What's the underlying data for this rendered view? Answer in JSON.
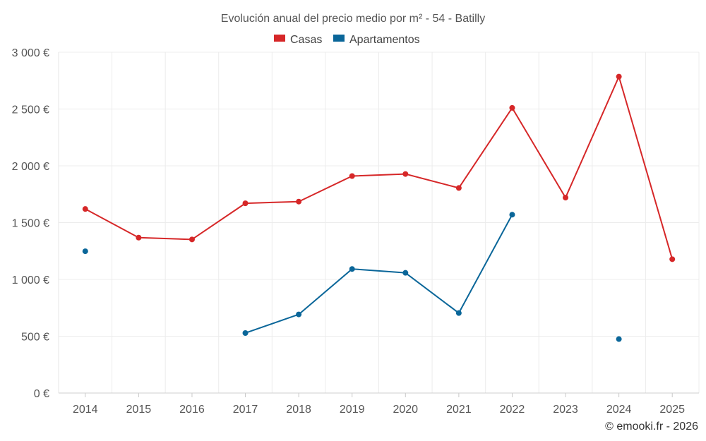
{
  "chart_data": {
    "type": "line",
    "title": "Evolución anual del precio medio por m² - 54 - Batilly",
    "categories": [
      "2014",
      "2015",
      "2016",
      "2017",
      "2018",
      "2019",
      "2020",
      "2021",
      "2022",
      "2023",
      "2024",
      "2025"
    ],
    "series": [
      {
        "name": "Casas",
        "color": "#d62728",
        "values": [
          1620,
          1368,
          1352,
          1670,
          1685,
          1910,
          1928,
          1805,
          2510,
          1720,
          2785,
          1178
        ]
      },
      {
        "name": "Apartamentos",
        "color": "#0a6699",
        "values": [
          1248,
          null,
          null,
          528,
          692,
          1092,
          1058,
          704,
          1570,
          null,
          475,
          null
        ]
      }
    ],
    "ylim": [
      0,
      3000
    ],
    "yticks": [
      0,
      500,
      1000,
      1500,
      2000,
      2500,
      3000
    ],
    "ytick_labels": [
      "0 €",
      "500 €",
      "1 000 €",
      "1 500 €",
      "2 000 €",
      "2 500 €",
      "3 000 €"
    ],
    "xlabel": "",
    "ylabel": "",
    "grid": true,
    "legend_position": "top-center"
  },
  "credit": "© emooki.fr - 2026"
}
